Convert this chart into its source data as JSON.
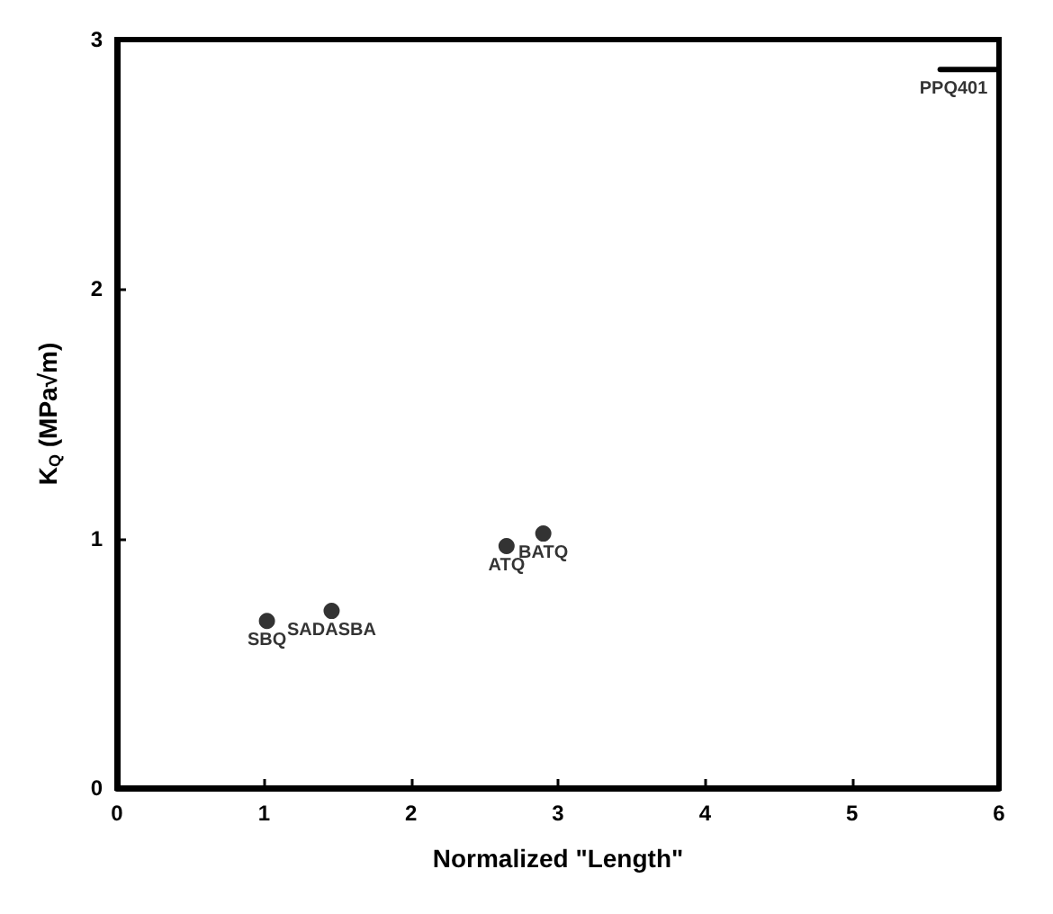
{
  "chart_data": {
    "type": "scatter",
    "xlabel": "Normalized \"Length\"",
    "ylabel": "K$_{Q}$ (MPa√m)",
    "xlim": [
      0,
      6
    ],
    "ylim": [
      0,
      3
    ],
    "xticks": [
      0,
      1,
      2,
      3,
      4,
      5,
      6
    ],
    "yticks": [
      0,
      1,
      2,
      3
    ],
    "marker": "circle",
    "series": [
      {
        "color": "#000000",
        "x": [
          1.02,
          1.46,
          2.65,
          2.9
        ],
        "values": [
          0.67,
          0.71,
          0.97,
          1.02
        ]
      },
      {
        "type": "line",
        "color": "#000000",
        "marker": "none",
        "x": [
          5.6,
          6.0
        ],
        "values": [
          2.88,
          2.88
        ]
      }
    ],
    "annotations": [
      {
        "text": "SBQ",
        "x": 1.02,
        "y": 0.67
      },
      {
        "text": "SADASBA",
        "x": 1.46,
        "y": 0.71
      },
      {
        "text": "ATQ",
        "x": 2.65,
        "y": 0.97
      },
      {
        "text": "BATQ",
        "x": 2.9,
        "y": 1.02
      },
      {
        "text": "PPQ401",
        "x": 5.8,
        "y": 2.88
      }
    ]
  }
}
